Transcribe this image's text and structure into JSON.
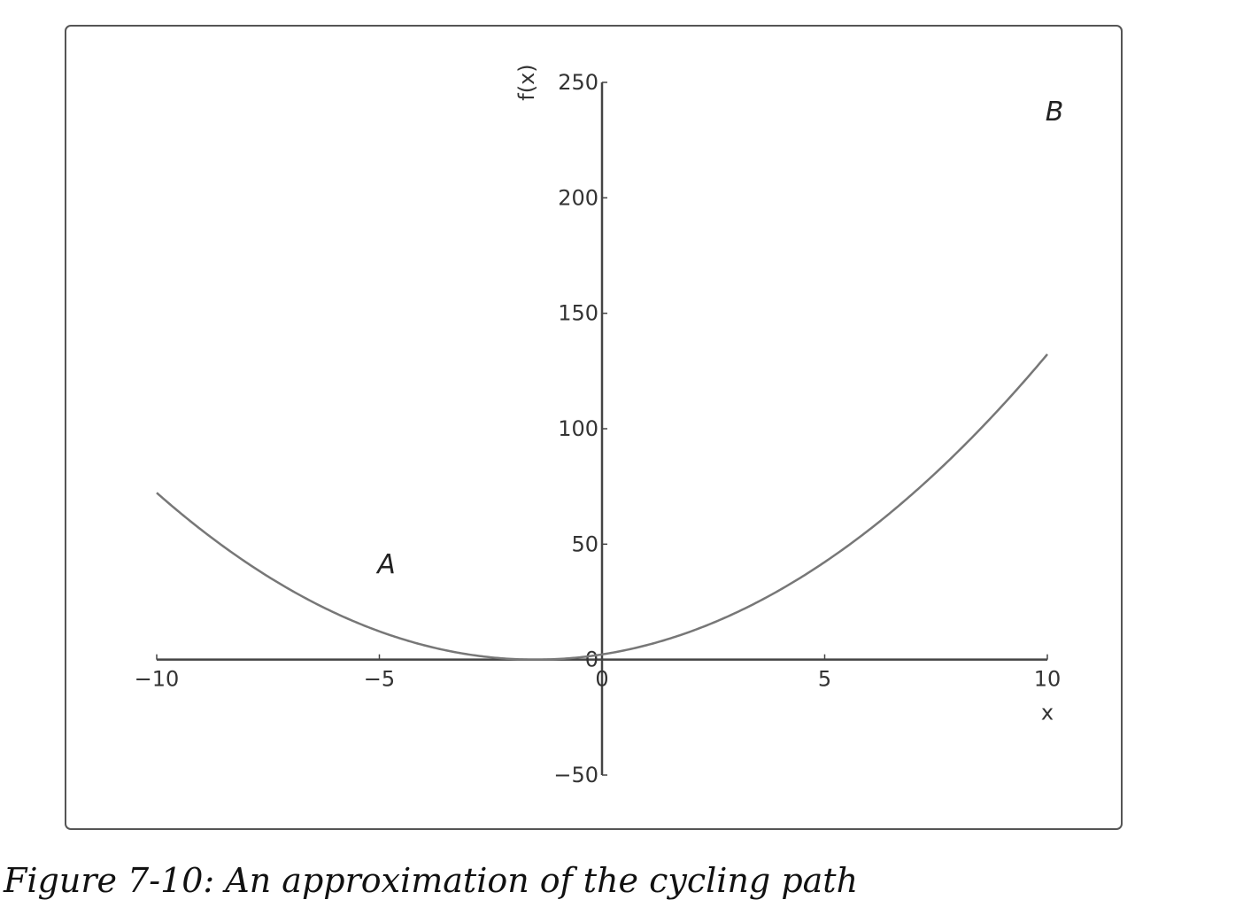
{
  "caption": "Figure 7-10: An approximation of the cycling path",
  "chart_data": {
    "type": "line",
    "xlabel": "x",
    "ylabel": "f(x)",
    "xlim": [
      -10,
      10
    ],
    "ylim": [
      -50,
      250
    ],
    "xticks": [
      -10,
      -5,
      0,
      5,
      10
    ],
    "xtick_labels": [
      "−10",
      "−5",
      "0",
      "5",
      "10"
    ],
    "yticks": [
      -50,
      0,
      50,
      100,
      150,
      200,
      250
    ],
    "ytick_labels": [
      "−50",
      "0",
      "50",
      "100",
      "150",
      "200",
      "250"
    ],
    "series": [
      {
        "color": "#777777",
        "function": "x^2 + 3x + 2.25",
        "x": [
          -10,
          -9,
          -8,
          -7,
          -6,
          -5,
          -4,
          -3,
          -2,
          -1.5,
          -1,
          0,
          1,
          2,
          3,
          4,
          5,
          6,
          7,
          8,
          9,
          10
        ],
        "y": [
          72.25,
          56.25,
          42.25,
          30.25,
          20.25,
          12.25,
          6.25,
          2.25,
          0.25,
          0,
          0.25,
          2.25,
          6.25,
          12.25,
          20.25,
          30.25,
          42.25,
          56.25,
          72.25,
          90.25,
          110.25,
          132.25
        ]
      }
    ],
    "annotations": [
      {
        "text": "A",
        "x": -5,
        "y": 36
      },
      {
        "text": "B",
        "x": 10,
        "y": 232
      }
    ],
    "grid": false
  }
}
